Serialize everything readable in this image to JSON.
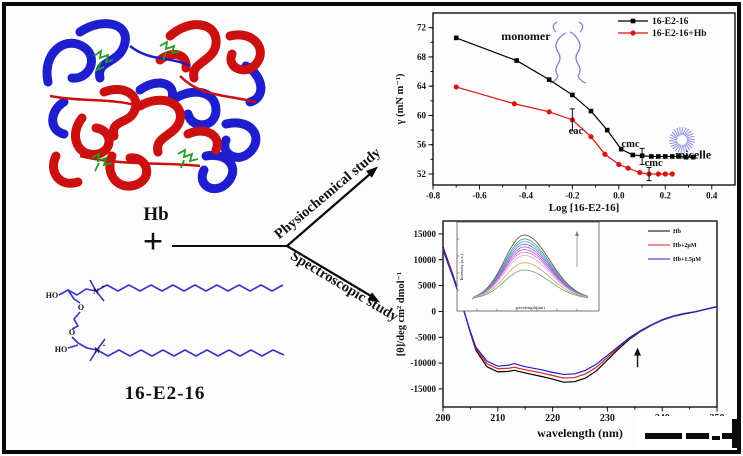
{
  "left": {
    "hb_label": "Hb",
    "plus": "+",
    "arrow_top_label": "Physiochemical study",
    "arrow_bottom_label": "Spectroscopic study",
    "molecule_label": "16-E2-16",
    "atoms": {
      "hydroxyl": "HO",
      "ether_oxygen": "O",
      "nitrogen": "N",
      "charge": "+"
    },
    "molecule_color": "#3535c8",
    "protein_colors": {
      "helix_red": "#cc0f0f",
      "helix_blue": "#1e1ecf",
      "heme_green": "#1f9e1f"
    }
  },
  "chart_data": [
    {
      "id": "surface_tension",
      "type": "line",
      "xlabel": "Log [16-E2-16]",
      "ylabel": "γ (mN m⁻¹)",
      "xlim": [
        -0.8,
        0.5
      ],
      "ylim": [
        50.5,
        74
      ],
      "xticks": [
        "-0.8",
        "-0.6",
        "-0.4",
        "-0.2",
        "0.0",
        "0.2",
        "0.4"
      ],
      "xtick_values": [
        -0.8,
        -0.6,
        -0.4,
        -0.2,
        0.0,
        0.2,
        0.4
      ],
      "yticks": [
        "52",
        "56",
        "60",
        "64",
        "68",
        "72"
      ],
      "ytick_values": [
        52,
        56,
        60,
        64,
        68,
        72
      ],
      "grid": false,
      "legend_position": "top-right",
      "series": [
        {
          "name": "16-E2-16",
          "color": "#000000",
          "marker": "square",
          "points": [
            [
              -0.7,
              70.6
            ],
            [
              -0.44,
              67.5
            ],
            [
              -0.3,
              64.9
            ],
            [
              -0.2,
              62.8
            ],
            [
              -0.12,
              60.6
            ],
            [
              -0.05,
              58.0
            ],
            [
              0.01,
              55.4
            ],
            [
              0.06,
              54.6
            ],
            [
              0.1,
              54.5
            ],
            [
              0.14,
              54.4
            ],
            [
              0.17,
              54.4
            ],
            [
              0.2,
              54.4
            ],
            [
              0.23,
              54.4
            ],
            [
              0.26,
              54.4
            ],
            [
              0.29,
              54.3
            ],
            [
              0.32,
              54.3
            ]
          ]
        },
        {
          "name": "16-E2-16+Hb",
          "color": "#e01010",
          "marker": "circle",
          "points": [
            [
              -0.7,
              63.9
            ],
            [
              -0.45,
              61.6
            ],
            [
              -0.3,
              60.5
            ],
            [
              -0.2,
              59.4
            ],
            [
              -0.12,
              57.1
            ],
            [
              -0.06,
              54.7
            ],
            [
              0.0,
              53.3
            ],
            [
              0.04,
              52.8
            ],
            [
              0.09,
              52.2
            ],
            [
              0.13,
              52.0
            ],
            [
              0.17,
              52.0
            ],
            [
              0.2,
              52.0
            ],
            [
              0.23,
              52.0
            ]
          ]
        }
      ],
      "error_bars": [
        {
          "x": -0.2,
          "y": 59.4,
          "e": 1.5,
          "color": "#e01010"
        },
        {
          "x": 0.1,
          "y": 54.4,
          "e": 1.1,
          "color": "#000000"
        },
        {
          "x": 0.13,
          "y": 52.0,
          "e": 0.9,
          "color": "#e01010"
        }
      ],
      "annotations": [
        {
          "text": "monomer",
          "x": -0.4,
          "y": 70.3,
          "fs": 12
        },
        {
          "text": "cac",
          "x": -0.185,
          "y": 57.5,
          "fs": 10.5
        },
        {
          "text": "cmc",
          "x": 0.05,
          "y": 55.7,
          "fs": 10.5
        },
        {
          "text": "cmc",
          "x": 0.15,
          "y": 53.1,
          "fs": 10.5
        },
        {
          "text": "micelle",
          "x": 0.32,
          "y": 54.1,
          "fs": 12
        }
      ],
      "sketch_color": "#8585dd"
    },
    {
      "id": "cd_spectra",
      "type": "line",
      "xlabel": "wavelength (nm)",
      "ylabel": "[θ]/deg cm² dmol⁻¹",
      "xlim": [
        200,
        250
      ],
      "ylim": [
        -18500,
        17500
      ],
      "xticks": [
        "200",
        "210",
        "220",
        "230",
        "240",
        "250"
      ],
      "xtick_values": [
        200,
        210,
        220,
        230,
        240,
        250
      ],
      "yticks": [
        "15000",
        "10000",
        "5000",
        "0",
        "-5000",
        "-10000",
        "-15000"
      ],
      "ytick_values": [
        15000,
        10000,
        5000,
        0,
        -5000,
        -10000,
        -15000
      ],
      "grid": false,
      "legend_position": "top-right",
      "x": [
        200,
        202,
        203,
        204,
        205,
        206,
        208,
        210,
        212,
        213,
        215,
        218,
        220,
        222,
        224,
        226,
        228,
        230,
        232,
        234,
        236,
        238,
        240,
        242,
        244,
        246,
        248,
        250
      ],
      "series": [
        {
          "name": "Hb",
          "color": "#000000",
          "values": [
            12500,
            6500,
            3000,
            -500,
            -4200,
            -7500,
            -10700,
            -11700,
            -11600,
            -11400,
            -11900,
            -12600,
            -13100,
            -13700,
            -13600,
            -12900,
            -11500,
            -9400,
            -7300,
            -5400,
            -3900,
            -2700,
            -1700,
            -1000,
            -500,
            -100,
            400,
            900
          ]
        },
        {
          "name": "Hb+2μM",
          "color": "#e02020",
          "values": [
            12200,
            6300,
            2900,
            -500,
            -4100,
            -7200,
            -10100,
            -11100,
            -11000,
            -10800,
            -11300,
            -11900,
            -12400,
            -12900,
            -12800,
            -12100,
            -10800,
            -8900,
            -7000,
            -5200,
            -3800,
            -2650,
            -1650,
            -950,
            -450,
            -80,
            420,
            920
          ]
        },
        {
          "name": "Hb+1.5μM",
          "color": "#2020d0",
          "values": [
            11900,
            6100,
            2800,
            -500,
            -3900,
            -6900,
            -9600,
            -10600,
            -10400,
            -10100,
            -10700,
            -11300,
            -11800,
            -12200,
            -12100,
            -11400,
            -10200,
            -8500,
            -6800,
            -5100,
            -3750,
            -2600,
            -1600,
            -900,
            -400,
            -50,
            450,
            950
          ]
        }
      ],
      "arrow_annotation": {
        "x": 235.5,
        "y_from": -10800,
        "y_to": -7000
      }
    },
    {
      "id": "inset_fluorescence",
      "type": "line",
      "xlabel": "wavelength(nm)",
      "ylabel": "Intensity (a.u.)",
      "peak_heights": [
        0.97,
        0.91,
        0.87,
        0.83,
        0.79,
        0.75,
        0.71,
        0.66,
        0.55,
        0.44
      ],
      "curve_colors": [
        "#6e4a22",
        "#2f9e9e",
        "#5aa0e0",
        "#7070d0",
        "#9a5fd0",
        "#c05fc0",
        "#d685cd",
        "#caaae6",
        "#c9a45f",
        "#62a862"
      ],
      "arrow": "up"
    }
  ]
}
